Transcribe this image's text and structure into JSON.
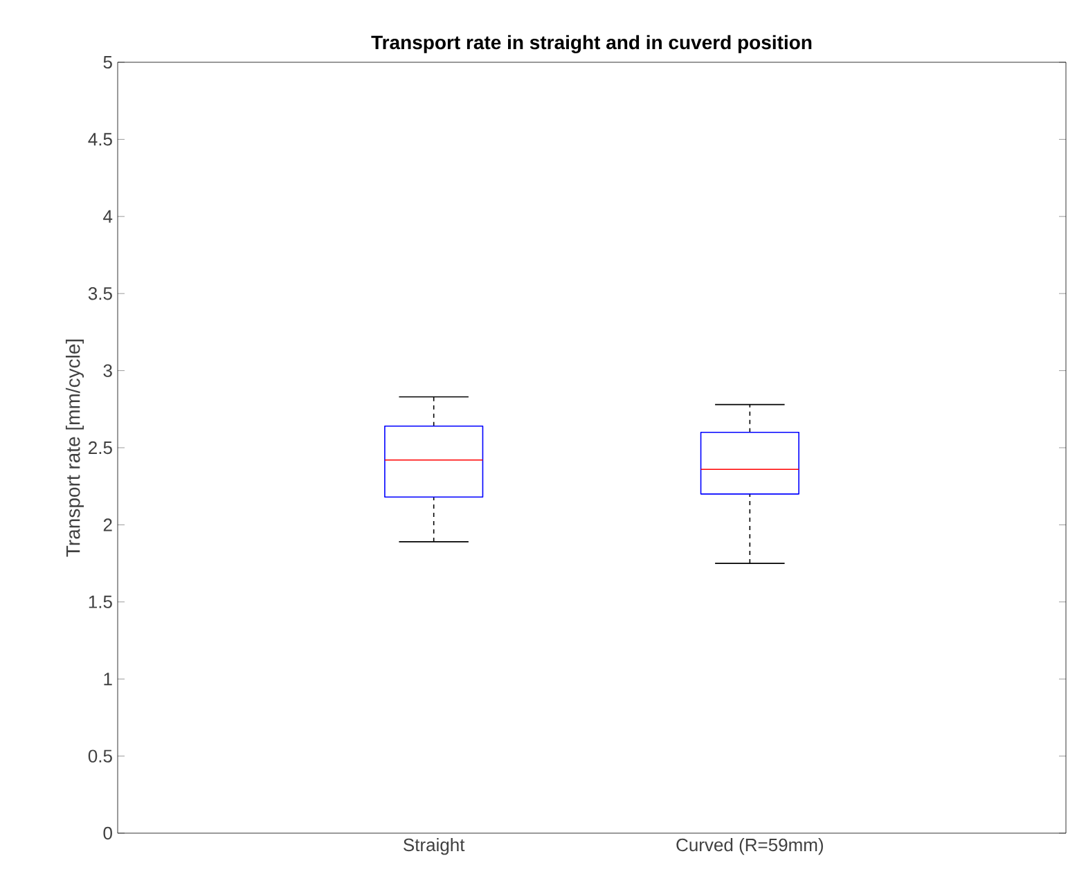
{
  "chart_data": {
    "type": "box",
    "title": "Transport rate in straight and in cuverd position",
    "ylabel": "Transport rate [mm/cycle]",
    "categories": [
      "Straight",
      "Curved (R=59mm)"
    ],
    "boxes": [
      {
        "low": 1.89,
        "q1": 2.18,
        "median": 2.42,
        "q3": 2.64,
        "high": 2.83
      },
      {
        "low": 1.75,
        "q1": 2.2,
        "median": 2.36,
        "q3": 2.6,
        "high": 2.78
      }
    ],
    "ylim": [
      0,
      5
    ],
    "yticks": [
      0,
      0.5,
      1,
      1.5,
      2,
      2.5,
      3,
      3.5,
      4,
      4.5,
      5
    ]
  }
}
